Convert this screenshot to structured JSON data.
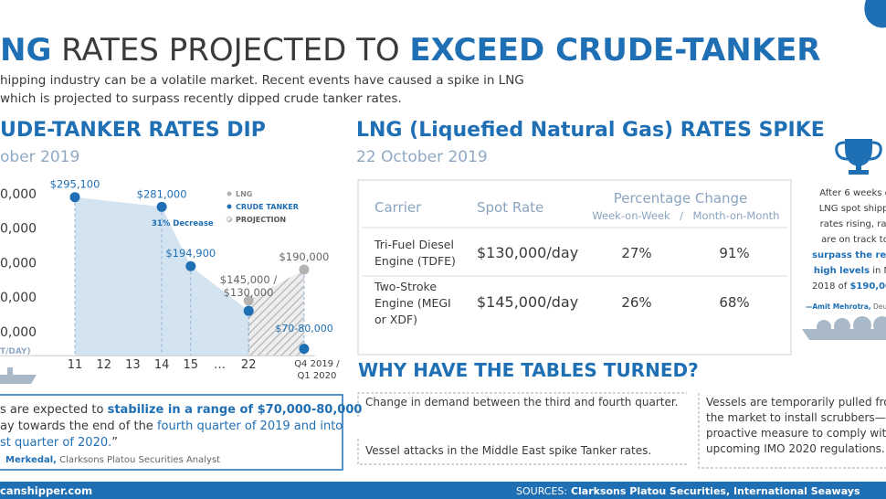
{
  "header": {
    "title": [
      "NG",
      " RATES PROJECTED TO ",
      "EXCEED CRUDE-TANKER"
    ],
    "intro": [
      "hipping industry can be a volatile market. Recent events have caused a spike in LNG",
      "which is projected to surpass recently dipped crude tanker rates."
    ]
  },
  "chart_data": {
    "type": "area",
    "title": "UDE-TANKER RATES DIP",
    "subtitle": "ober 2019",
    "y_label": "T/DAY)",
    "categories": [
      "11",
      "12",
      "13",
      "14",
      "15",
      "…",
      "22",
      "Q4 2019 /\nQ1 2020"
    ],
    "series": [
      {
        "name": "LNG",
        "color": "#b3b3b3",
        "values": [
          null,
          null,
          null,
          null,
          null,
          null,
          145000,
          190000
        ],
        "value_labels": [
          null,
          null,
          null,
          null,
          null,
          null,
          null,
          "$190,000"
        ]
      },
      {
        "name": "CRUDE TANKER",
        "color": "#1f6fb5",
        "values": [
          295100,
          null,
          null,
          281000,
          194900,
          null,
          130000,
          75000
        ],
        "value_labels": [
          "$295,100",
          null,
          null,
          "$281,000",
          "$194,900",
          null,
          null,
          null
        ]
      }
    ],
    "projection_label": "PROJECTION",
    "annotations": [
      "31% Decrease",
      "$145,000 /",
      "$130,000",
      "$70-80,000"
    ],
    "ylim": [
      65000,
      320000
    ],
    "yticks": [
      {
        "value": 100000,
        "label": "0,000"
      },
      {
        "value": 150000,
        "label": "0,000"
      },
      {
        "value": 200000,
        "label": "0,000"
      },
      {
        "value": 250000,
        "label": "0,000"
      },
      {
        "value": 300000,
        "label": "0,000"
      }
    ]
  },
  "left_quote": {
    "lines": [
      [
        "s are expected to ",
        "stabilize in a range of $70,000-80,000"
      ],
      [
        "ay towards the end of the ",
        "fourth quarter of 2019 and into"
      ],
      [
        "st quarter of 2020.",
        "”"
      ]
    ],
    "attribution": [
      "Merkedal,",
      " Clarksons Platou Securities Analyst"
    ]
  },
  "lng_section": {
    "title": "LNG (Liquefied Natural Gas) RATES SPIKE",
    "subtitle": "22 October 2019"
  },
  "table": {
    "header": [
      "Carrier",
      "Spot Rate",
      "Percentage Change"
    ],
    "subheader": [
      "Week-on-Week",
      "/",
      "Month-on-Month"
    ],
    "rows": [
      [
        [
          "Tri-Fuel Diesel",
          "Engine (TDFE)"
        ],
        "$130,000/day",
        "27%",
        "91%"
      ],
      [
        [
          "Two-Stroke",
          "Engine (MEGI",
          "or XDF)"
        ],
        "$145,000/day",
        "26%",
        "68%"
      ]
    ]
  },
  "sidebar": {
    "lines": [
      "After 6 weeks o",
      "LNG spot shippi",
      "rates rising, rat",
      "are on track to",
      "surpass the reco"
    ],
    "line6": [
      "high levels",
      " in No"
    ],
    "line7": [
      "2018 of ",
      "$190,000"
    ],
    "attribution": [
      "—Amit Mehrotra,",
      " Deutsc"
    ]
  },
  "why": {
    "title": "WHY HAVE THE TABLES TURNED?",
    "items": [
      "Change in demand between the third and fourth quarter.",
      "Vessel attacks in the Middle East spike Tanker rates."
    ],
    "side": [
      "Vessels are temporarily pulled fro",
      "the market to install scrubbers—a",
      "proactive measure to comply with",
      "upcoming IMO 2020 regulations."
    ]
  },
  "footer": {
    "site": "canshipper.com",
    "sources_label": "SOURCES:",
    "sources": " Clarksons Platou Securities, International Seaways"
  }
}
